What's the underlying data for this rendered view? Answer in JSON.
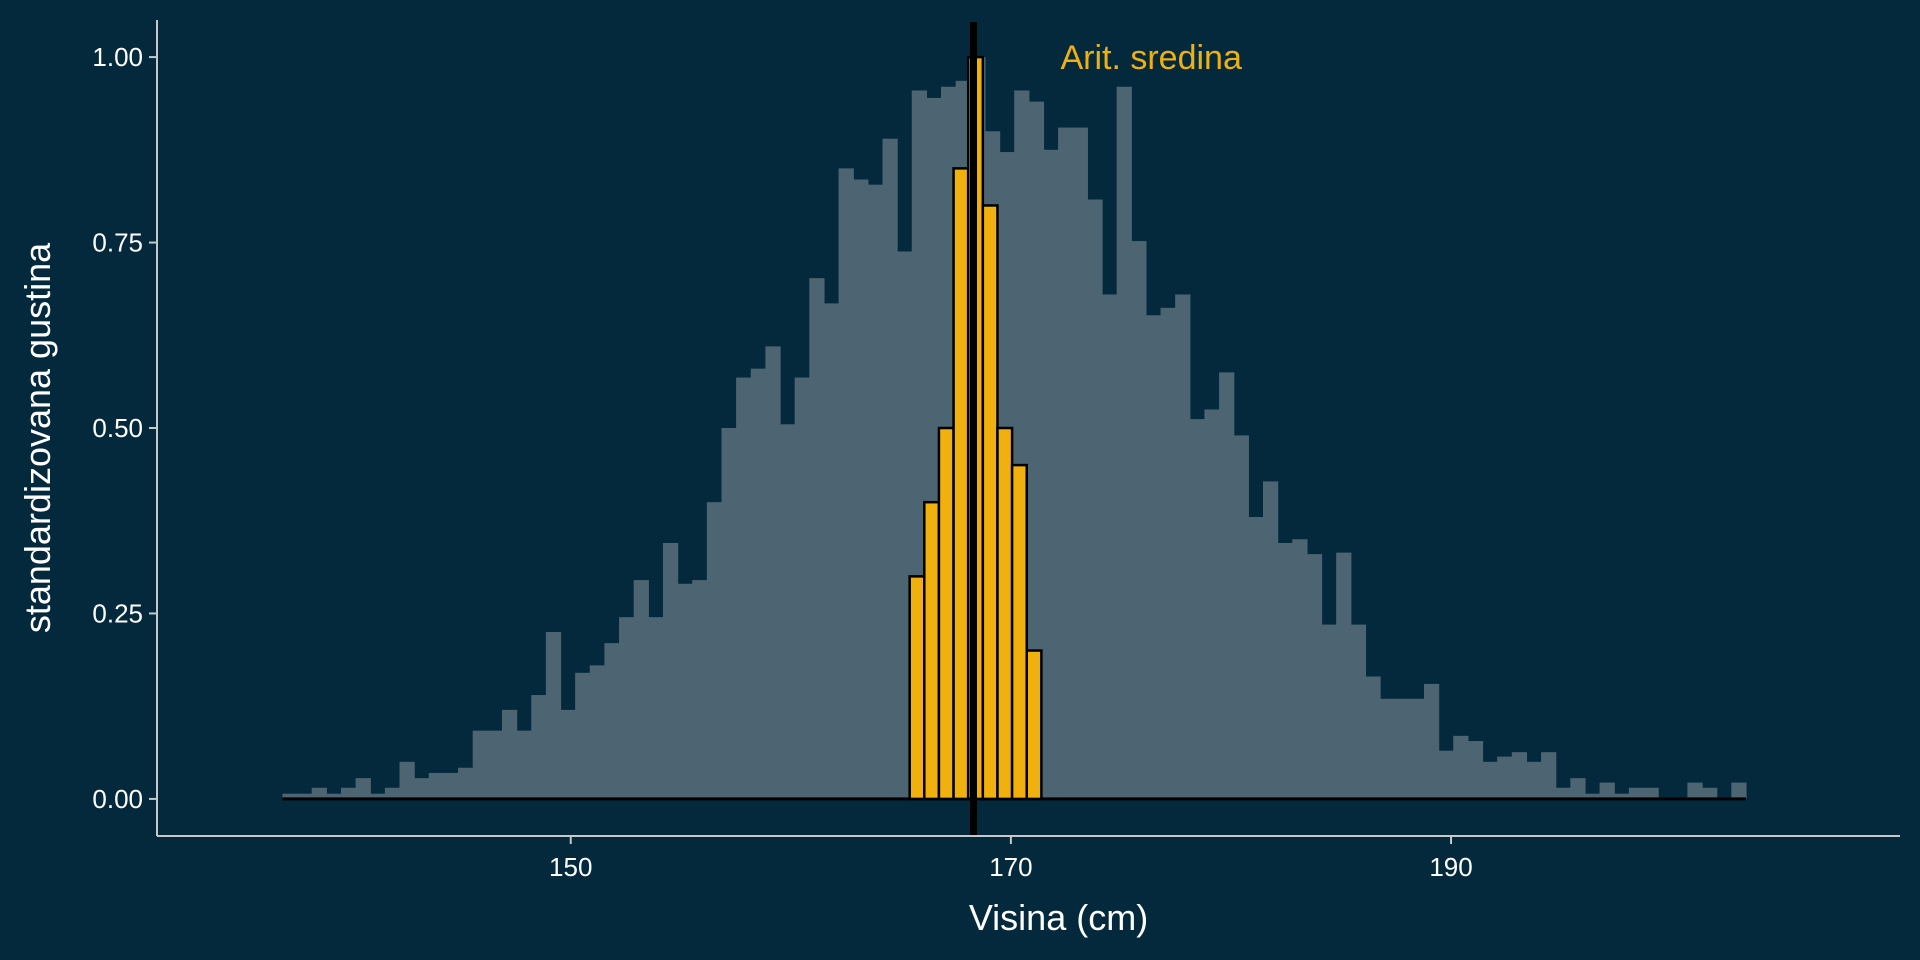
{
  "chart_data": {
    "type": "bar",
    "xlabel": "Visina (cm)",
    "ylabel": "standardizovana gustina",
    "xlim": [
      131.2,
      210.4
    ],
    "ylim": [
      -0.05,
      1.05
    ],
    "x_ticks": [
      150,
      170,
      190
    ],
    "y_ticks": [
      0.0,
      0.25,
      0.5,
      0.75,
      1.0
    ],
    "y_tick_labels": [
      "0.00",
      "0.25",
      "0.50",
      "0.75",
      "1.00"
    ],
    "grid": false,
    "bin_width": 0.665,
    "colors": {
      "background": "#04293d",
      "population": "#4d6573",
      "sample": "#f0b00e",
      "mean_line": "#000000",
      "axis": "#c8c8c8"
    },
    "series": [
      {
        "role": "population",
        "x_start": 136.9,
        "values": [
          0.007,
          0.007,
          0.015,
          0.007,
          0.015,
          0.028,
          0.007,
          0.015,
          0.05,
          0.028,
          0.035,
          0.035,
          0.042,
          0.092,
          0.092,
          0.12,
          0.092,
          0.14,
          0.225,
          0.12,
          0.17,
          0.18,
          0.21,
          0.245,
          0.295,
          0.245,
          0.345,
          0.29,
          0.295,
          0.4,
          0.5,
          0.568,
          0.58,
          0.61,
          0.505,
          0.568,
          0.702,
          0.668,
          0.85,
          0.835,
          0.828,
          0.89,
          0.738,
          0.955,
          0.945,
          0.96,
          0.968,
          1.0,
          0.9,
          0.872,
          0.955,
          0.94,
          0.875,
          0.905,
          0.905,
          0.808,
          0.68,
          0.96,
          0.752,
          0.652,
          0.662,
          0.68,
          0.512,
          0.525,
          0.575,
          0.49,
          0.38,
          0.428,
          0.345,
          0.35,
          0.33,
          0.235,
          0.332,
          0.235,
          0.165,
          0.135,
          0.135,
          0.135,
          0.155,
          0.065,
          0.085,
          0.078,
          0.05,
          0.057,
          0.063,
          0.05,
          0.063,
          0.015,
          0.028,
          0.007,
          0.022,
          0.007,
          0.015,
          0.015,
          0.0,
          0.0,
          0.022,
          0.015,
          0.0,
          0.022
        ]
      },
      {
        "role": "sample",
        "x_start": 165.4,
        "values": [
          0.3,
          0.4,
          0.5,
          0.85,
          1.0,
          0.8,
          0.5,
          0.45,
          0.2
        ]
      }
    ],
    "mean_line": {
      "x": 168.3,
      "label": "Arit. sredina"
    }
  }
}
